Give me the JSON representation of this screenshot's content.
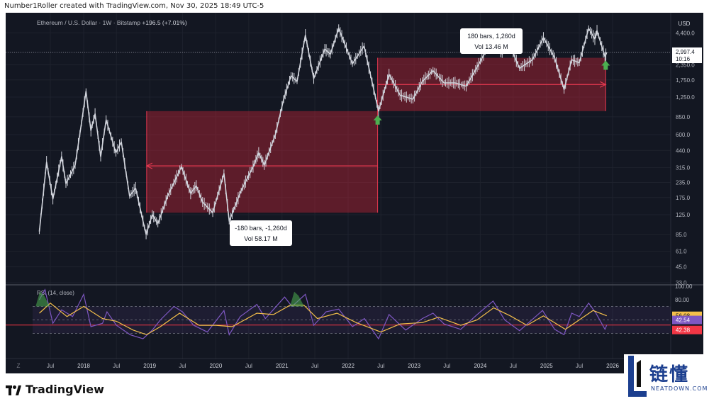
{
  "header": "Number1Roller created with TradingView.com, Nov 30, 2025 18:49 UTC-5",
  "footer": {
    "logo_text": "TradingView"
  },
  "watermark": {
    "text": "链懂",
    "sub": "NEATDOWN.COM"
  },
  "chart_data": {
    "type": "line",
    "title": "Ethereum / U.S. Dollar · 1W · Bitstamp",
    "change": "+196.5 (+7.01%)",
    "currency": "USD",
    "y_scale": "log",
    "ylim": [
      33,
      6000
    ],
    "y_ticks": [
      "4,400.0",
      "2,997.4",
      "2,350.0",
      "1,750.0",
      "1,250.0",
      "850.0",
      "600.0",
      "440.0",
      "315.0",
      "235.0",
      "175.0",
      "125.0",
      "85.0",
      "61.0",
      "45.0",
      "33.0"
    ],
    "x_ticks": [
      "Jul",
      "2018",
      "Jul",
      "2019",
      "Jul",
      "2020",
      "Jul",
      "2021",
      "Jul",
      "2022",
      "Jul",
      "2023",
      "Jul",
      "2024",
      "Jul",
      "2025",
      "Jul",
      "2026"
    ],
    "current_price": "2,997.4",
    "countdown": "10:16",
    "series": [
      {
        "name": "ETH/USD",
        "points": [
          [
            "2017-05-01",
            90
          ],
          [
            "2017-06-10",
            350
          ],
          [
            "2017-07-15",
            170
          ],
          [
            "2017-09-01",
            390
          ],
          [
            "2017-09-25",
            230
          ],
          [
            "2017-11-15",
            330
          ],
          [
            "2017-12-20",
            750
          ],
          [
            "2018-01-14",
            1400
          ],
          [
            "2018-02-10",
            650
          ],
          [
            "2018-03-05",
            900
          ],
          [
            "2018-04-05",
            390
          ],
          [
            "2018-05-05",
            800
          ],
          [
            "2018-06-28",
            420
          ],
          [
            "2018-07-28",
            520
          ],
          [
            "2018-09-12",
            180
          ],
          [
            "2018-10-15",
            210
          ],
          [
            "2018-11-25",
            110
          ],
          [
            "2018-12-12",
            85
          ],
          [
            "2019-01-15",
            125
          ],
          [
            "2019-02-15",
            105
          ],
          [
            "2019-04-10",
            180
          ],
          [
            "2019-06-25",
            320
          ],
          [
            "2019-08-15",
            190
          ],
          [
            "2019-09-15",
            220
          ],
          [
            "2019-10-20",
            160
          ],
          [
            "2019-12-15",
            130
          ],
          [
            "2020-02-15",
            280
          ],
          [
            "2020-03-15",
            110
          ],
          [
            "2020-05-20",
            200
          ],
          [
            "2020-07-25",
            320
          ],
          [
            "2020-08-25",
            420
          ],
          [
            "2020-09-25",
            330
          ],
          [
            "2020-11-25",
            600
          ],
          [
            "2021-01-10",
            1200
          ],
          [
            "2021-02-20",
            1900
          ],
          [
            "2021-03-25",
            1700
          ],
          [
            "2021-05-10",
            4200
          ],
          [
            "2021-06-25",
            1800
          ],
          [
            "2021-08-25",
            3200
          ],
          [
            "2021-09-25",
            2900
          ],
          [
            "2021-11-10",
            4800
          ],
          [
            "2022-01-25",
            2400
          ],
          [
            "2022-03-30",
            3400
          ],
          [
            "2022-06-18",
            950
          ],
          [
            "2022-08-15",
            1950
          ],
          [
            "2022-10-15",
            1300
          ],
          [
            "2022-12-25",
            1200
          ],
          [
            "2023-02-15",
            1700
          ],
          [
            "2023-04-15",
            2100
          ],
          [
            "2023-06-15",
            1650
          ],
          [
            "2023-08-15",
            1650
          ],
          [
            "2023-10-15",
            1550
          ],
          [
            "2023-12-15",
            2250
          ],
          [
            "2024-03-12",
            4000
          ],
          [
            "2024-05-01",
            2900
          ],
          [
            "2024-05-27",
            3900
          ],
          [
            "2024-08-05",
            2200
          ],
          [
            "2024-10-15",
            2600
          ],
          [
            "2024-12-15",
            4000
          ],
          [
            "2025-02-15",
            2700
          ],
          [
            "2025-04-08",
            1450
          ],
          [
            "2025-05-20",
            2600
          ],
          [
            "2025-07-01",
            2450
          ],
          [
            "2025-08-22",
            4800
          ],
          [
            "2025-09-25",
            3900
          ],
          [
            "2025-10-07",
            4600
          ],
          [
            "2025-11-20",
            2750
          ],
          [
            "2025-11-30",
            2997.4
          ]
        ]
      }
    ],
    "annotations": [
      {
        "label": "-180 bars, -1,260d",
        "vol": "Vol 58.17 M",
        "box_from": [
          "2018-12-15",
          130
        ],
        "box_to": [
          "2022-06-13",
          950
        ],
        "arrow_y": 325
      },
      {
        "label": "180 bars, 1,260d",
        "vol": "Vol 13.46 M",
        "box_from": [
          "2022-06-13",
          950
        ],
        "box_to": [
          "2025-11-24",
          2700
        ],
        "arrow_y": 1600
      }
    ],
    "rsi": {
      "title": "RSI (14, close)",
      "ticks": [
        "100.00",
        "80.00"
      ],
      "rsi_value": "42.54",
      "ma_value": "56.08",
      "third_value": "42.38",
      "levels": [
        70,
        50,
        30
      ],
      "rsi_points": [
        [
          "2017-05-01",
          80
        ],
        [
          "2017-06-01",
          95
        ],
        [
          "2017-07-15",
          45
        ],
        [
          "2017-09-01",
          65
        ],
        [
          "2017-11-01",
          55
        ],
        [
          "2018-01-01",
          88
        ],
        [
          "2018-02-10",
          40
        ],
        [
          "2018-04-15",
          45
        ],
        [
          "2018-05-10",
          62
        ],
        [
          "2018-07-01",
          42
        ],
        [
          "2018-09-15",
          28
        ],
        [
          "2018-11-25",
          22
        ],
        [
          "2019-01-15",
          35
        ],
        [
          "2019-03-01",
          50
        ],
        [
          "2019-05-15",
          70
        ],
        [
          "2019-07-01",
          62
        ],
        [
          "2019-09-01",
          42
        ],
        [
          "2019-11-15",
          32
        ],
        [
          "2020-02-15",
          64
        ],
        [
          "2020-03-15",
          28
        ],
        [
          "2020-05-15",
          55
        ],
        [
          "2020-08-15",
          73
        ],
        [
          "2020-10-01",
          52
        ],
        [
          "2021-01-15",
          84
        ],
        [
          "2021-02-25",
          70
        ],
        [
          "2021-05-10",
          88
        ],
        [
          "2021-06-25",
          42
        ],
        [
          "2021-09-01",
          62
        ],
        [
          "2021-11-10",
          66
        ],
        [
          "2022-01-25",
          40
        ],
        [
          "2022-04-01",
          52
        ],
        [
          "2022-06-18",
          22
        ],
        [
          "2022-08-15",
          58
        ],
        [
          "2022-11-15",
          35
        ],
        [
          "2023-02-15",
          52
        ],
        [
          "2023-04-15",
          60
        ],
        [
          "2023-06-15",
          44
        ],
        [
          "2023-09-15",
          36
        ],
        [
          "2023-12-15",
          58
        ],
        [
          "2024-03-12",
          78
        ],
        [
          "2024-05-15",
          50
        ],
        [
          "2024-08-05",
          34
        ],
        [
          "2024-12-10",
          64
        ],
        [
          "2025-02-15",
          36
        ],
        [
          "2025-04-08",
          28
        ],
        [
          "2025-05-20",
          60
        ],
        [
          "2025-07-01",
          55
        ],
        [
          "2025-08-22",
          75
        ],
        [
          "2025-10-01",
          60
        ],
        [
          "2025-11-20",
          36
        ],
        [
          "2025-11-30",
          42.54
        ]
      ],
      "ma_points": [
        [
          "2017-05-01",
          60
        ],
        [
          "2017-07-01",
          75
        ],
        [
          "2017-10-01",
          55
        ],
        [
          "2018-01-01",
          70
        ],
        [
          "2018-04-15",
          52
        ],
        [
          "2018-07-01",
          48
        ],
        [
          "2018-10-01",
          35
        ],
        [
          "2018-12-15",
          28
        ],
        [
          "2019-03-01",
          40
        ],
        [
          "2019-06-15",
          60
        ],
        [
          "2019-10-01",
          42
        ],
        [
          "2020-01-01",
          42
        ],
        [
          "2020-04-01",
          40
        ],
        [
          "2020-08-15",
          60
        ],
        [
          "2020-11-15",
          58
        ],
        [
          "2021-02-15",
          72
        ],
        [
          "2021-05-01",
          72
        ],
        [
          "2021-07-15",
          52
        ],
        [
          "2021-11-01",
          60
        ],
        [
          "2022-02-15",
          46
        ],
        [
          "2022-07-01",
          32
        ],
        [
          "2022-10-15",
          44
        ],
        [
          "2023-02-15",
          46
        ],
        [
          "2023-05-15",
          54
        ],
        [
          "2023-09-15",
          42
        ],
        [
          "2023-12-15",
          50
        ],
        [
          "2024-03-15",
          68
        ],
        [
          "2024-06-15",
          56
        ],
        [
          "2024-09-15",
          42
        ],
        [
          "2024-12-15",
          56
        ],
        [
          "2025-04-15",
          36
        ],
        [
          "2025-07-01",
          50
        ],
        [
          "2025-09-15",
          64
        ],
        [
          "2025-11-30",
          56.08
        ]
      ]
    }
  }
}
